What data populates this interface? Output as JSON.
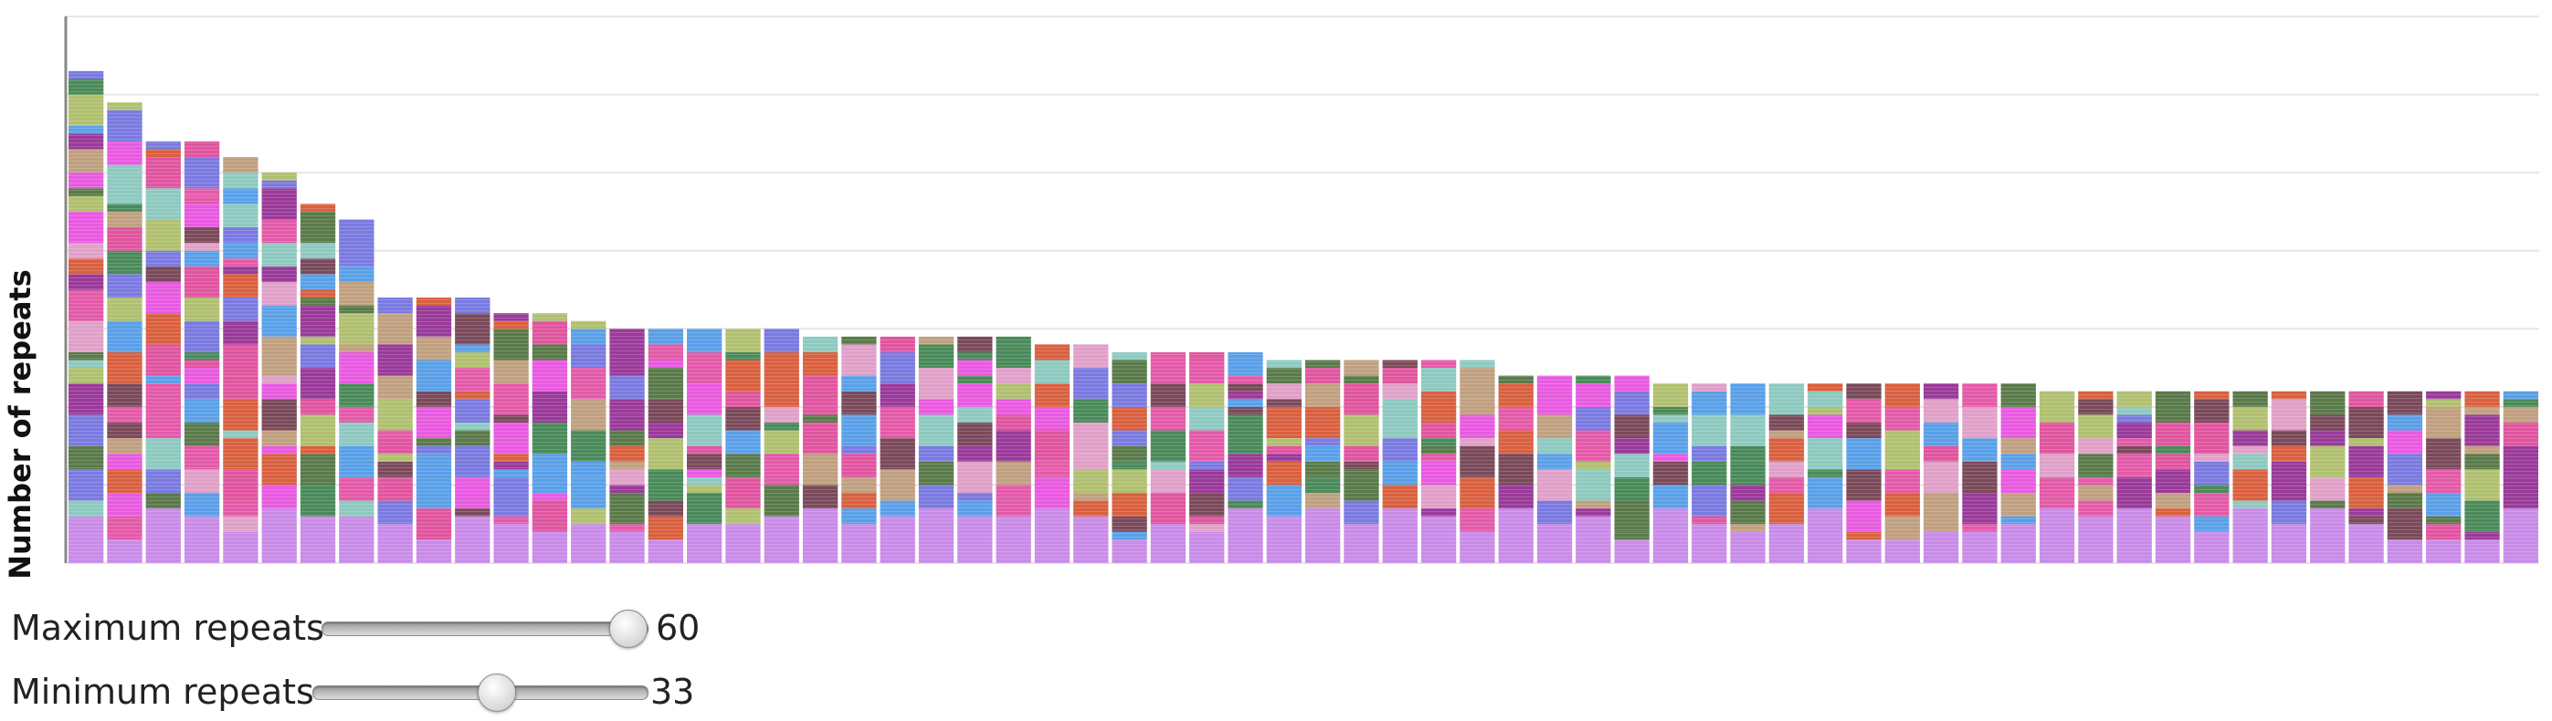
{
  "chart_data": {
    "type": "bar",
    "stacked": true,
    "ylabel": "Number of repeats",
    "xlabel": "",
    "title": "",
    "grid": true,
    "ylim": [
      0,
      70
    ],
    "bar_count": 64,
    "values": [
      63,
      59,
      54,
      54,
      52,
      50,
      46,
      44,
      34,
      34,
      34,
      32,
      32,
      31,
      30,
      30,
      30,
      30,
      30,
      29,
      29,
      29,
      29,
      29,
      29,
      28,
      28,
      27,
      27,
      27,
      27,
      26,
      26,
      26,
      26,
      26,
      26,
      24,
      24,
      24,
      24,
      23,
      23,
      23,
      23,
      23,
      23,
      23,
      23,
      23,
      23,
      22,
      22,
      22,
      22,
      22,
      22,
      22,
      22,
      22,
      22,
      22,
      22,
      22
    ],
    "segment_colors": [
      "#c98be8",
      "#7a4a5a",
      "#e35aa8",
      "#5a7a4a",
      "#d9603f",
      "#e0559f",
      "#e85ae0",
      "#5aa0e8",
      "#4a8a5a",
      "#8ec9c0",
      "#7a7ae0",
      "#9a3a9a",
      "#b0c070",
      "#e0a0c8",
      "#c0a080",
      "#f0a040"
    ]
  },
  "controls": {
    "max_label": "Maximum repeats",
    "max_value": "60",
    "max_fraction": 0.94,
    "min_label": "Minimum repeats",
    "min_value": "33",
    "min_fraction": 0.55
  }
}
